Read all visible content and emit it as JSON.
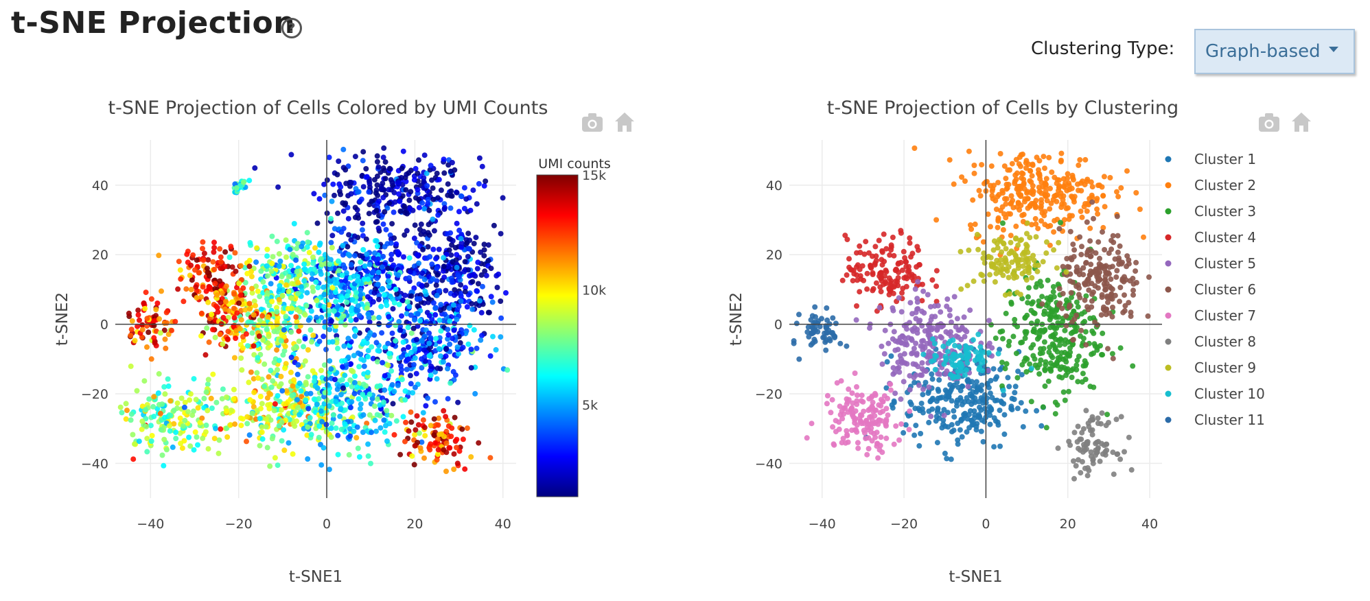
{
  "header": {
    "title": "t-SNE Projection",
    "help_glyph": "?"
  },
  "controls": {
    "clustering_label": "Clustering Type:",
    "clustering_value": "Graph-based"
  },
  "toolbar_icons": [
    "camera-icon",
    "home-icon"
  ],
  "chart_data": [
    {
      "type": "scatter",
      "title": "t-SNE Projection of Cells Colored by UMI Counts",
      "xlabel": "t-SNE1",
      "ylabel": "t-SNE2",
      "xlim": [
        -48,
        43
      ],
      "ylim": [
        -50,
        53
      ],
      "xticks": [
        -40,
        -20,
        0,
        20,
        40
      ],
      "yticks": [
        -40,
        -20,
        0,
        20,
        40
      ],
      "grid": true,
      "zero_lines": true,
      "colorbar": {
        "title": "UMI counts",
        "range": [
          1000,
          15000
        ],
        "ticks": [
          {
            "value": 5000,
            "label": "5k"
          },
          {
            "value": 10000,
            "label": "10k"
          },
          {
            "value": 15000,
            "label": "15k"
          }
        ],
        "colorscale": [
          "#00007f",
          "#0000ff",
          "#007fff",
          "#00ffff",
          "#7fff7f",
          "#ffff00",
          "#ff7f00",
          "#ff0000",
          "#7f0000"
        ]
      },
      "regions": [
        {
          "x": 15,
          "y": 38,
          "sx": 9,
          "sy": 6,
          "umi": 1500
        },
        {
          "x": 30,
          "y": 14,
          "sx": 5,
          "sy": 8,
          "umi": 1800
        },
        {
          "x": 13,
          "y": 14,
          "sx": 7,
          "sy": 6,
          "umi": 3000
        },
        {
          "x": 22,
          "y": -5,
          "sx": 7,
          "sy": 7,
          "umi": 3500
        },
        {
          "x": 3,
          "y": 8,
          "sx": 6,
          "sy": 7,
          "umi": 5500
        },
        {
          "x": -7,
          "y": 14,
          "sx": 5,
          "sy": 6,
          "umi": 7000
        },
        {
          "x": -14,
          "y": 0,
          "sx": 5,
          "sy": 7,
          "umi": 8500
        },
        {
          "x": -26,
          "y": 15,
          "sx": 4,
          "sy": 4,
          "umi": 13500
        },
        {
          "x": -23,
          "y": 3,
          "sx": 4,
          "sy": 5,
          "umi": 12000
        },
        {
          "x": -40,
          "y": 0,
          "sx": 3,
          "sy": 3.5,
          "umi": 13000
        },
        {
          "x": -35,
          "y": -27,
          "sx": 6,
          "sy": 5,
          "umi": 8000
        },
        {
          "x": -10,
          "y": -24,
          "sx": 7,
          "sy": 6,
          "umi": 9000
        },
        {
          "x": 5,
          "y": -20,
          "sx": 7,
          "sy": 8,
          "umi": 6000
        },
        {
          "x": 25,
          "y": -33,
          "sx": 4,
          "sy": 4,
          "umi": 12500
        },
        {
          "x": -20,
          "y": 40,
          "sx": 1,
          "sy": 1,
          "umi": 6000
        }
      ]
    },
    {
      "type": "scatter",
      "title": "t-SNE Projection of Cells by Clustering",
      "xlabel": "t-SNE1",
      "ylabel": "t-SNE2",
      "xlim": [
        -48,
        43
      ],
      "ylim": [
        -50,
        53
      ],
      "xticks": [
        -40,
        -20,
        0,
        20,
        40
      ],
      "yticks": [
        -40,
        -20,
        0,
        20,
        40
      ],
      "grid": true,
      "zero_lines": true,
      "legend_position": "right",
      "series": [
        {
          "name": "Cluster 1",
          "color": "#1f77b4",
          "x": -6,
          "y": -22,
          "sx": 7,
          "sy": 7
        },
        {
          "name": "Cluster 2",
          "color": "#ff7f0e",
          "x": 13,
          "y": 38,
          "sx": 9,
          "sy": 6
        },
        {
          "name": "Cluster 3",
          "color": "#2ca02c",
          "x": 16,
          "y": -3,
          "sx": 6,
          "sy": 9
        },
        {
          "name": "Cluster 4",
          "color": "#d62728",
          "x": -24,
          "y": 15,
          "sx": 5,
          "sy": 5
        },
        {
          "name": "Cluster 5",
          "color": "#9467bd",
          "x": -14,
          "y": -5,
          "sx": 6,
          "sy": 7
        },
        {
          "name": "Cluster 6",
          "color": "#8c564b",
          "x": 28,
          "y": 12,
          "sx": 5,
          "sy": 7
        },
        {
          "name": "Cluster 7",
          "color": "#e377c2",
          "x": -30,
          "y": -27,
          "sx": 5,
          "sy": 5
        },
        {
          "name": "Cluster 8",
          "color": "#7f7f7f",
          "x": 26,
          "y": -35,
          "sx": 3,
          "sy": 4
        },
        {
          "name": "Cluster 9",
          "color": "#bcbd22",
          "x": 6,
          "y": 18,
          "sx": 5,
          "sy": 4
        },
        {
          "name": "Cluster 10",
          "color": "#17becf",
          "x": -6,
          "y": -10,
          "sx": 4,
          "sy": 3
        },
        {
          "name": "Cluster 11",
          "color": "#2b6ba8",
          "x": -40,
          "y": -2,
          "sx": 2.5,
          "sy": 3
        }
      ]
    }
  ]
}
